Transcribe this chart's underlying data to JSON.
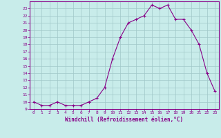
{
  "x": [
    0,
    1,
    2,
    3,
    4,
    5,
    6,
    7,
    8,
    9,
    10,
    11,
    12,
    13,
    14,
    15,
    16,
    17,
    18,
    19,
    20,
    21,
    22,
    23
  ],
  "y": [
    10,
    9.5,
    9.5,
    10,
    9.5,
    9.5,
    9.5,
    10,
    10.5,
    12,
    16,
    19,
    21,
    21.5,
    22,
    23.5,
    23,
    23.5,
    21.5,
    21.5,
    20,
    18,
    14,
    11.5
  ],
  "xlim": [
    -0.5,
    23.5
  ],
  "ylim": [
    9,
    24
  ],
  "yticks": [
    9,
    10,
    11,
    12,
    13,
    14,
    15,
    16,
    17,
    18,
    19,
    20,
    21,
    22,
    23
  ],
  "xticks": [
    0,
    1,
    2,
    3,
    4,
    5,
    6,
    7,
    8,
    9,
    10,
    11,
    12,
    13,
    14,
    15,
    16,
    17,
    18,
    19,
    20,
    21,
    22,
    23
  ],
  "xlabel": "Windchill (Refroidissement éolien,°C)",
  "line_color": "#880088",
  "marker": "+",
  "bg_color": "#c8ecea",
  "grid_color": "#a0c8c8"
}
